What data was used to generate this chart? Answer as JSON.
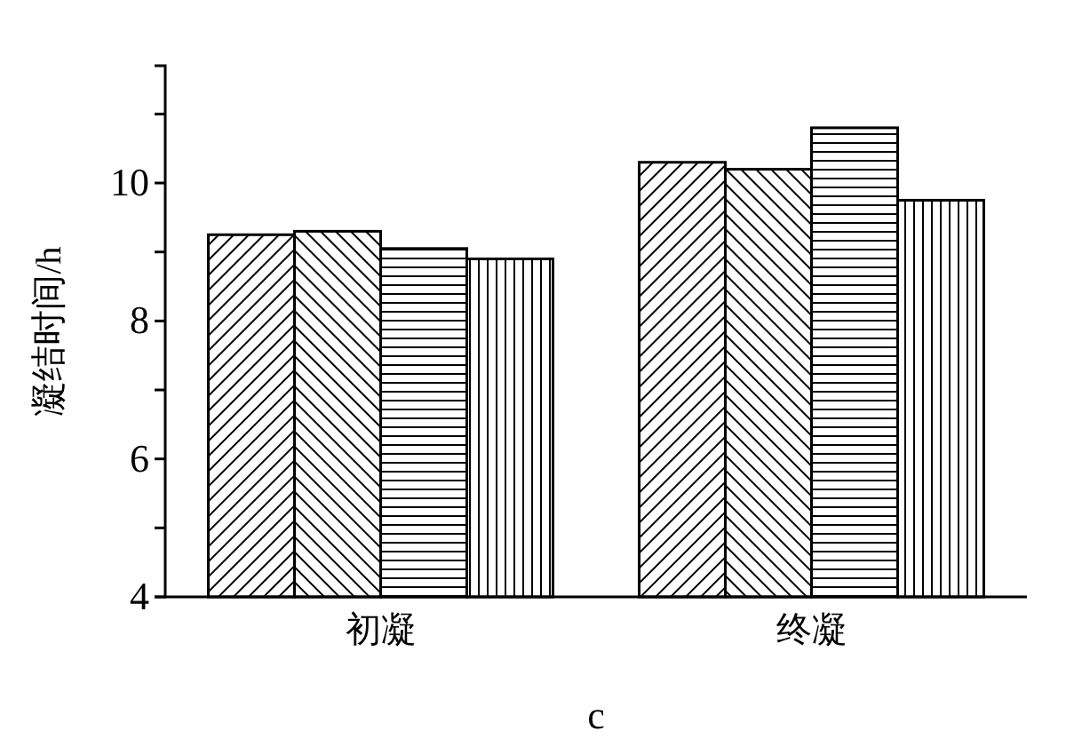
{
  "chart_data": {
    "type": "bar",
    "xlabel": "c",
    "ylabel": "凝结时间/h",
    "categories": [
      "初凝",
      "终凝"
    ],
    "series": [
      {
        "color": "#000000",
        "values": [
          9.25,
          10.3
        ]
      },
      {
        "color": "#000000",
        "values": [
          9.3,
          10.2
        ]
      },
      {
        "color": "#000000",
        "values": [
          9.05,
          10.8
        ]
      },
      {
        "color": "#000000",
        "values": [
          8.9,
          9.75
        ]
      }
    ],
    "ylim": [
      4,
      11.7
    ],
    "yticks": [
      4,
      {
        "value": 5,
        "label": null
      },
      6,
      {
        "value": 7,
        "label": null
      },
      8,
      {
        "value": 9,
        "label": null
      },
      10,
      {
        "value": 11,
        "label": null
      }
    ],
    "grid": false
  }
}
